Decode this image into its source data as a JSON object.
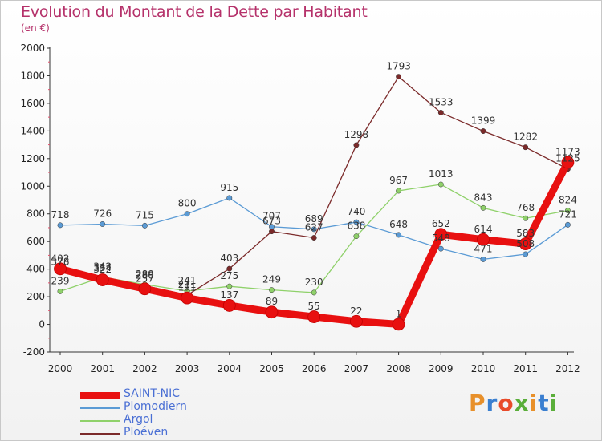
{
  "header": {
    "title": "Evolution du Montant de la Dette par Habitant",
    "subtitle": "(en €)"
  },
  "brand": {
    "text": "Proxiti",
    "colors": [
      "#e8902a",
      "#3a7fd0",
      "#e84b2a",
      "#5aae3a",
      "#e8902a",
      "#3a7fd0",
      "#5aae3a"
    ]
  },
  "chart_data": {
    "type": "line",
    "x": [
      "2000",
      "2001",
      "2002",
      "2003",
      "2004",
      "2005",
      "2006",
      "2007",
      "2008",
      "2009",
      "2010",
      "2011",
      "2012"
    ],
    "ylim": [
      -200,
      2000
    ],
    "yticks": [
      "-200",
      "0",
      "200",
      "400",
      "600",
      "800",
      "1000",
      "1200",
      "1400",
      "1600",
      "1800",
      "2000"
    ],
    "grid": false,
    "legend_position": "bottom-left",
    "series": [
      {
        "name": "SAINT-NIC",
        "color": "#e81010",
        "values": [
          402,
          322,
          257,
          191,
          137,
          89,
          55,
          22,
          1,
          652,
          614,
          583,
          1173
        ],
        "labels": [
          "402",
          "322",
          "257",
          "191",
          "137",
          "89",
          "55",
          "22",
          "1",
          "652",
          "614",
          "583",
          "1173"
        ]
      },
      {
        "name": "Plomodiern",
        "color": "#5b9bd5",
        "values": [
          718,
          726,
          715,
          800,
          915,
          707,
          689,
          740,
          648,
          548,
          471,
          508,
          721
        ],
        "labels": [
          "718",
          "726",
          "715",
          "800",
          "915",
          "707",
          "689",
          "740",
          "648",
          "548",
          "471",
          "508",
          "721"
        ]
      },
      {
        "name": "Argol",
        "color": "#8fd16a",
        "values": [
          239,
          342,
          289,
          241,
          275,
          249,
          230,
          638,
          967,
          1013,
          843,
          768,
          824
        ],
        "labels": [
          "239",
          "342",
          "289",
          "241",
          "275",
          "249",
          "230",
          "638",
          "967",
          "1013",
          "843",
          "768",
          "824"
        ]
      },
      {
        "name": "Ploéven",
        "color": "#7b2a2a",
        "values": [
          378,
          334,
          280,
          211,
          403,
          673,
          627,
          1298,
          1793,
          1533,
          1399,
          1282,
          1125
        ],
        "labels": [
          "378",
          "334",
          "280",
          "211",
          "403",
          "673",
          "627",
          "1298",
          "1793",
          "1533",
          "1399",
          "1282",
          "1125"
        ]
      }
    ]
  }
}
